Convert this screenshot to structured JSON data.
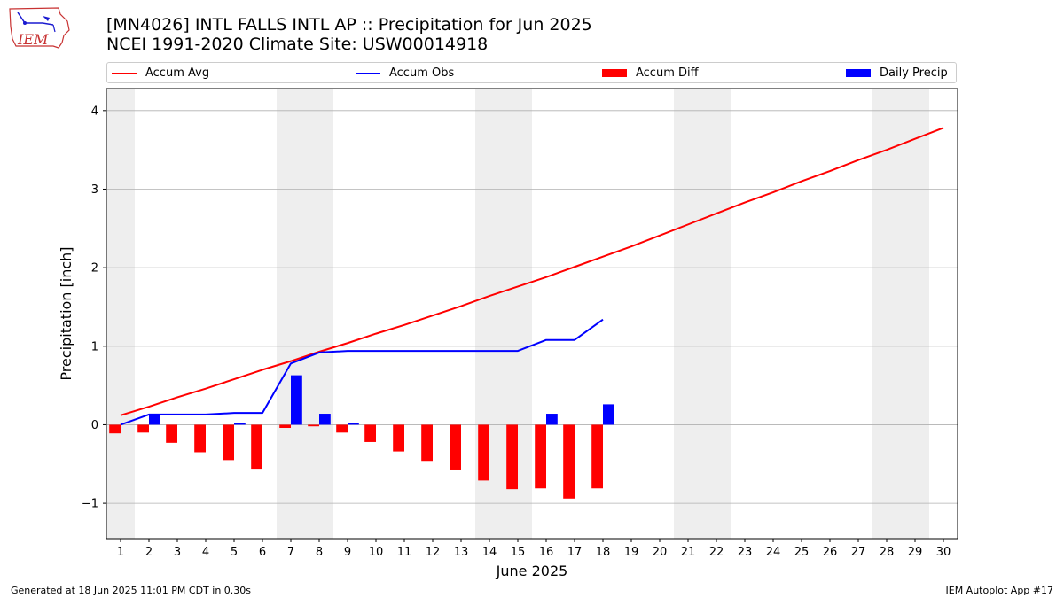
{
  "logo": {
    "text": "IEM",
    "icon": "iowa-state-outline-logo"
  },
  "title": {
    "line1": "[MN4026] INTL FALLS INTL AP :: Precipitation for Jun 2025",
    "line2": "NCEI 1991-2020 Climate Site: USW00014918"
  },
  "legend": {
    "accum_avg": "Accum Avg",
    "accum_obs": "Accum Obs",
    "accum_diff": "Accum Diff",
    "daily_precip": "Daily Precip"
  },
  "colors": {
    "accum_avg": "#ff0000",
    "accum_obs": "#0000ff",
    "accum_diff": "#ff0000",
    "daily_precip": "#0000ff",
    "weekend_shade": "#eeeeee",
    "grid": "#b0b0b0"
  },
  "footer": {
    "generated": "Generated at 18 Jun 2025 11:01 PM CDT in 0.30s",
    "app": "IEM Autoplot App #17"
  },
  "chart_data": {
    "type": "line",
    "xlabel": "June 2025",
    "ylabel": "Precipitation [inch]",
    "x": [
      1,
      2,
      3,
      4,
      5,
      6,
      7,
      8,
      9,
      10,
      11,
      12,
      13,
      14,
      15,
      16,
      17,
      18,
      19,
      20,
      21,
      22,
      23,
      24,
      25,
      26,
      27,
      28,
      29,
      30
    ],
    "xlim": [
      0.5,
      30.5
    ],
    "ylim": [
      -1.45,
      4.28
    ],
    "yticks": [
      -1,
      0,
      1,
      2,
      3,
      4
    ],
    "ytick_labels": [
      "−1",
      "0",
      "1",
      "2",
      "3",
      "4"
    ],
    "grid": "horizontal",
    "legend_position": "top",
    "weekend_shading": [
      [
        0.5,
        1.5
      ],
      [
        6.5,
        8.5
      ],
      [
        13.5,
        15.5
      ],
      [
        20.5,
        22.5
      ],
      [
        27.5,
        29.5
      ]
    ],
    "series": [
      {
        "name": "Accum Avg",
        "kind": "line",
        "x": [
          1,
          2,
          3,
          4,
          5,
          6,
          7,
          8,
          9,
          10,
          11,
          12,
          13,
          14,
          15,
          16,
          17,
          18,
          19,
          20,
          21,
          22,
          23,
          24,
          25,
          26,
          27,
          28,
          29,
          30
        ],
        "values": [
          0.12,
          0.23,
          0.35,
          0.46,
          0.58,
          0.7,
          0.81,
          0.93,
          1.04,
          1.16,
          1.27,
          1.39,
          1.51,
          1.64,
          1.76,
          1.88,
          2.01,
          2.14,
          2.27,
          2.41,
          2.55,
          2.69,
          2.83,
          2.96,
          3.1,
          3.23,
          3.37,
          3.5,
          3.64,
          3.78
        ]
      },
      {
        "name": "Accum Obs",
        "kind": "line",
        "x": [
          1,
          2,
          3,
          4,
          5,
          6,
          7,
          8,
          9,
          10,
          11,
          12,
          13,
          14,
          15,
          16,
          17,
          18
        ],
        "values": [
          0.0,
          0.13,
          0.13,
          0.13,
          0.15,
          0.15,
          0.78,
          0.92,
          0.94,
          0.94,
          0.94,
          0.94,
          0.94,
          0.94,
          0.94,
          1.08,
          1.08,
          1.34
        ]
      },
      {
        "name": "Accum Diff",
        "kind": "bar",
        "x": [
          1,
          2,
          3,
          4,
          5,
          6,
          7,
          8,
          9,
          10,
          11,
          12,
          13,
          14,
          15,
          16,
          17,
          18
        ],
        "values": [
          -0.11,
          -0.1,
          -0.23,
          -0.35,
          -0.45,
          -0.56,
          -0.04,
          -0.02,
          -0.1,
          -0.22,
          -0.34,
          -0.46,
          -0.57,
          -0.71,
          -0.82,
          -0.81,
          -0.94,
          -0.81
        ]
      },
      {
        "name": "Daily Precip",
        "kind": "bar",
        "x": [
          1,
          2,
          3,
          4,
          5,
          6,
          7,
          8,
          9,
          10,
          11,
          12,
          13,
          14,
          15,
          16,
          17,
          18
        ],
        "values": [
          0.0,
          0.13,
          0.0,
          0.0,
          0.02,
          0.0,
          0.63,
          0.14,
          0.02,
          0.0,
          0.0,
          0.0,
          0.0,
          0.0,
          0.0,
          0.14,
          0.0,
          0.26
        ]
      }
    ]
  }
}
